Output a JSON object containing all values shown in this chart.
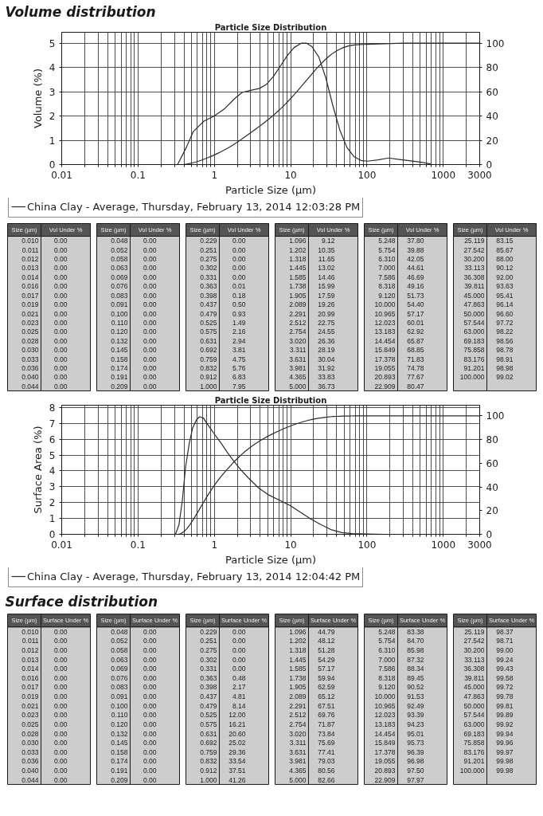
{
  "chart_data": [
    {
      "type": "line",
      "title": "Volume distribution",
      "subtitle": "Particle Size Distribution",
      "xlabel": "Particle Size (µm)",
      "ylabel": "Volume (%)",
      "log": "x",
      "xlim": [
        0.01,
        3000
      ],
      "xticks": [
        0.01,
        {
          "value": 0.02,
          "label": null
        },
        {
          "value": 0.03,
          "label": null
        },
        {
          "value": 0.04,
          "label": null
        },
        {
          "value": 0.05,
          "label": null
        },
        {
          "value": 0.06,
          "label": null
        },
        {
          "value": 0.07,
          "label": null
        },
        {
          "value": 0.08,
          "label": null
        },
        {
          "value": 0.09,
          "label": null
        },
        0.1,
        {
          "value": 0.2,
          "label": null
        },
        {
          "value": 0.3,
          "label": null
        },
        {
          "value": 0.4,
          "label": null
        },
        {
          "value": 0.5,
          "label": null
        },
        {
          "value": 0.6,
          "label": null
        },
        {
          "value": 0.7,
          "label": null
        },
        {
          "value": 0.8,
          "label": null
        },
        {
          "value": 0.9,
          "label": null
        },
        1,
        {
          "value": 2,
          "label": null
        },
        {
          "value": 3,
          "label": null
        },
        {
          "value": 4,
          "label": null
        },
        {
          "value": 5,
          "label": null
        },
        {
          "value": 6,
          "label": null
        },
        {
          "value": 7,
          "label": null
        },
        {
          "value": 8,
          "label": null
        },
        {
          "value": 9,
          "label": null
        },
        10,
        {
          "value": 20,
          "label": null
        },
        {
          "value": 30,
          "label": null
        },
        {
          "value": 40,
          "label": null
        },
        {
          "value": 50,
          "label": null
        },
        {
          "value": 60,
          "label": null
        },
        {
          "value": 70,
          "label": null
        },
        {
          "value": 80,
          "label": null
        },
        {
          "value": 90,
          "label": null
        },
        100,
        {
          "value": 200,
          "label": null
        },
        {
          "value": 300,
          "label": null
        },
        {
          "value": 400,
          "label": null
        },
        {
          "value": 500,
          "label": null
        },
        {
          "value": 600,
          "label": null
        },
        {
          "value": 700,
          "label": null
        },
        {
          "value": 800,
          "label": null
        },
        {
          "value": 900,
          "label": null
        },
        1000,
        {
          "value": 2000,
          "label": null
        },
        3000
      ],
      "ylim": [
        0,
        5.45
      ],
      "yticks": [
        0,
        1,
        2,
        3,
        4,
        5
      ],
      "y2lim": [
        0,
        109
      ],
      "y2ticks": [
        0,
        20,
        40,
        60,
        80,
        100
      ],
      "grid": true,
      "legend": "bottom",
      "series": [
        {
          "name": "China Clay - Average, Thursday, February 13, 2014 12:03:28 PM",
          "color": "#2b2b2b",
          "x": [
            0.33,
            0.43,
            0.53,
            0.73,
            1,
            1.37,
            1.88,
            2.32,
            2.86,
            3.92,
            4.84,
            5.98,
            7.38,
            9.1,
            11.2,
            13.8,
            16.2,
            19,
            23.4,
            28.9,
            35.7,
            44,
            54.5,
            67.3,
            83,
            102,
            140,
            192,
            264,
            360,
            496,
            680
          ],
          "values": [
            0,
            0.71,
            1.36,
            1.79,
            2.0,
            2.31,
            2.74,
            2.97,
            3.04,
            3.14,
            3.31,
            3.64,
            4.07,
            4.5,
            4.83,
            5.0,
            5.0,
            4.86,
            4.43,
            3.57,
            2.43,
            1.43,
            0.71,
            0.33,
            0.17,
            0.14,
            0.19,
            0.27,
            0.21,
            0.16,
            0.1,
            0.03
          ]
        },
        {
          "axis": "y2",
          "color": "#2b2b2b",
          "x": [
            0.01,
            0.331,
            0.363,
            0.398,
            0.437,
            0.479,
            0.525,
            0.575,
            0.631,
            0.692,
            0.759,
            0.832,
            0.912,
            1.0,
            1.096,
            1.202,
            1.318,
            1.445,
            1.585,
            1.738,
            1.905,
            2.089,
            2.291,
            2.512,
            2.754,
            3.02,
            3.311,
            3.631,
            3.981,
            4.365,
            5.0,
            5.248,
            5.754,
            6.31,
            7.0,
            7.586,
            8.318,
            9.12,
            10.0,
            10.965,
            12.023,
            13.183,
            14.454,
            15.849,
            17.378,
            19.055,
            20.893,
            22.909,
            25.119,
            27.542,
            30.2,
            33.113,
            36.308,
            39.811,
            45.0,
            47.863,
            50.0,
            57.544,
            63.0,
            69.183,
            75.858,
            83.176,
            91.201,
            100.0,
            300,
            3000
          ],
          "values": [
            0,
            0,
            0.01,
            0.18,
            0.5,
            0.93,
            1.49,
            2.16,
            2.94,
            3.81,
            4.75,
            5.76,
            6.83,
            7.95,
            9.12,
            10.35,
            11.65,
            13.02,
            14.46,
            15.99,
            17.59,
            19.26,
            20.99,
            22.75,
            24.55,
            26.36,
            28.19,
            30.04,
            31.92,
            33.83,
            36.73,
            37.8,
            39.88,
            42.05,
            44.61,
            46.69,
            49.16,
            51.73,
            54.4,
            57.17,
            60.01,
            62.92,
            65.87,
            68.85,
            71.83,
            74.78,
            77.67,
            80.47,
            83.15,
            85.67,
            88.0,
            90.12,
            92.0,
            93.63,
            95.41,
            96.14,
            96.6,
            97.72,
            98.22,
            98.56,
            98.78,
            98.91,
            98.98,
            99.02,
            100,
            100
          ]
        }
      ]
    },
    {
      "type": "other",
      "xlabel": "Size (µm)",
      "ylabel": "Vol Under %",
      "categories": [
        "0.010",
        "0.011",
        "0.012",
        "0.013",
        "0.014",
        "0.016",
        "0.017",
        "0.019",
        "0.021",
        "0.023",
        "0.025",
        "0.028",
        "0.030",
        "0.033",
        "0.036",
        "0.040",
        "0.044",
        "0.048",
        "0.052",
        "0.058",
        "0.063",
        "0.069",
        "0.076",
        "0.083",
        "0.091",
        "0.100",
        "0.110",
        "0.120",
        "0.132",
        "0.145",
        "0.158",
        "0.174",
        "0.191",
        "0.209",
        "0.229",
        "0.251",
        "0.275",
        "0.302",
        "0.331",
        "0.363",
        "0.398",
        "0.437",
        "0.479",
        "0.525",
        "0.575",
        "0.631",
        "0.692",
        "0.759",
        "0.832",
        "0.912",
        "1.000",
        "1.096",
        "1.202",
        "1.318",
        "1.445",
        "1.585",
        "1.738",
        "1.905",
        "2.089",
        "2.291",
        "2.512",
        "2.754",
        "3.020",
        "3.311",
        "3.631",
        "3.981",
        "4.365",
        "5.000",
        "5.248",
        "5.754",
        "6.310",
        "7.000",
        "7.586",
        "8.318",
        "9.120",
        "10.000",
        "10.965",
        "12.023",
        "13.183",
        "14.454",
        "15.849",
        "17.378",
        "19.055",
        "20.893",
        "22.909",
        "25.119",
        "27.542",
        "30.200",
        "33.113",
        "36.308",
        "39.811",
        "45.000",
        "47.863",
        "50.000",
        "57.544",
        "63.000",
        "69.183",
        "75.858",
        "83.176",
        "91.201",
        "100.000"
      ],
      "value_labels": [
        "0.00",
        "0.00",
        "0.00",
        "0.00",
        "0.00",
        "0.00",
        "0.00",
        "0.00",
        "0.00",
        "0.00",
        "0.00",
        "0.00",
        "0.00",
        "0.00",
        "0.00",
        "0.00",
        "0.00",
        "0.00",
        "0.00",
        "0.00",
        "0.00",
        "0.00",
        "0.00",
        "0.00",
        "0.00",
        "0.00",
        "0.00",
        "0.00",
        "0.00",
        "0.00",
        "0.00",
        "0.00",
        "0.00",
        "0.00",
        "0.00",
        "0.00",
        "0.00",
        "0.00",
        "0.00",
        "0.01",
        "0.18",
        "0.50",
        "0.93",
        "1.49",
        "2.16",
        "2.94",
        "3.81",
        "4.75",
        "5.76",
        "6.83",
        "7.95",
        "9.12",
        "10.35",
        "11.65",
        "13.02",
        "14.46",
        "15.99",
        "17.59",
        "19.26",
        "20.99",
        "22.75",
        "24.55",
        "26.36",
        "28.19",
        "30.04",
        "31.92",
        "33.83",
        "36.73",
        "37.80",
        "39.88",
        "42.05",
        "44.61",
        "46.69",
        "49.16",
        "51.73",
        "54.40",
        "57.17",
        "60.01",
        "62.92",
        "65.87",
        "68.85",
        "71.83",
        "74.78",
        "77.67",
        "80.47",
        "83.15",
        "85.67",
        "88.00",
        "90.12",
        "92.00",
        "93.63",
        "95.41",
        "96.14",
        "96.60",
        "97.72",
        "98.22",
        "98.56",
        "98.78",
        "98.91",
        "98.98",
        "99.02"
      ]
    },
    {
      "type": "line",
      "subtitle": "Particle Size Distribution",
      "xlabel": "Particle Size (µm)",
      "ylabel": "Surface Area (%)",
      "log": "x",
      "xlim": [
        0.01,
        3000
      ],
      "xticks": [
        0.01,
        {
          "value": 0.02,
          "label": null
        },
        {
          "value": 0.03,
          "label": null
        },
        {
          "value": 0.04,
          "label": null
        },
        {
          "value": 0.05,
          "label": null
        },
        {
          "value": 0.06,
          "label": null
        },
        {
          "value": 0.07,
          "label": null
        },
        {
          "value": 0.08,
          "label": null
        },
        {
          "value": 0.09,
          "label": null
        },
        0.1,
        {
          "value": 0.2,
          "label": null
        },
        {
          "value": 0.3,
          "label": null
        },
        {
          "value": 0.4,
          "label": null
        },
        {
          "value": 0.5,
          "label": null
        },
        {
          "value": 0.6,
          "label": null
        },
        {
          "value": 0.7,
          "label": null
        },
        {
          "value": 0.8,
          "label": null
        },
        {
          "value": 0.9,
          "label": null
        },
        1,
        {
          "value": 2,
          "label": null
        },
        {
          "value": 3,
          "label": null
        },
        {
          "value": 4,
          "label": null
        },
        {
          "value": 5,
          "label": null
        },
        {
          "value": 6,
          "label": null
        },
        {
          "value": 7,
          "label": null
        },
        {
          "value": 8,
          "label": null
        },
        {
          "value": 9,
          "label": null
        },
        10,
        {
          "value": 20,
          "label": null
        },
        {
          "value": 30,
          "label": null
        },
        {
          "value": 40,
          "label": null
        },
        {
          "value": 50,
          "label": null
        },
        {
          "value": 60,
          "label": null
        },
        {
          "value": 70,
          "label": null
        },
        {
          "value": 80,
          "label": null
        },
        {
          "value": 90,
          "label": null
        },
        100,
        {
          "value": 200,
          "label": null
        },
        {
          "value": 300,
          "label": null
        },
        {
          "value": 400,
          "label": null
        },
        {
          "value": 500,
          "label": null
        },
        {
          "value": 600,
          "label": null
        },
        {
          "value": 700,
          "label": null
        },
        {
          "value": 800,
          "label": null
        },
        {
          "value": 900,
          "label": null
        },
        1000,
        {
          "value": 2000,
          "label": null
        },
        3000
      ],
      "ylim": [
        0,
        8.15
      ],
      "yticks": [
        0,
        1,
        2,
        3,
        4,
        5,
        6,
        7,
        8
      ],
      "y2lim": [
        0,
        109
      ],
      "y2ticks": [
        0,
        20,
        40,
        60,
        80,
        100
      ],
      "grid": true,
      "legend": "bottom",
      "series": [
        {
          "name": "China Clay - Average, Thursday, February 13, 2014 12:04:42 PM",
          "color": "#2b2b2b",
          "x": [
            0.31,
            0.344,
            0.38,
            0.42,
            0.47,
            0.52,
            0.58,
            0.64,
            0.72,
            0.79,
            0.98,
            1.21,
            1.49,
            1.83,
            2.26,
            2.79,
            3.82,
            5.22,
            7.15,
            9.79,
            13.4,
            18.3,
            25.1,
            34.4,
            47,
            64.5,
            98,
            166
          ],
          "values": [
            0,
            0.6,
            2.1,
            4.25,
            5.75,
            6.72,
            7.21,
            7.42,
            7.34,
            7.04,
            6.39,
            5.79,
            5.15,
            4.57,
            4.03,
            3.56,
            2.92,
            2.47,
            2.15,
            1.82,
            1.39,
            0.97,
            0.6,
            0.28,
            0.11,
            0.04,
            0.02,
            0
          ]
        },
        {
          "axis": "y2",
          "color": "#2b2b2b",
          "x": [
            0.01,
            0.331,
            0.363,
            0.398,
            0.437,
            0.479,
            0.525,
            0.575,
            0.631,
            0.692,
            0.759,
            0.832,
            0.912,
            1.0,
            1.096,
            1.202,
            1.318,
            1.445,
            1.585,
            1.738,
            1.905,
            2.089,
            2.291,
            2.512,
            2.754,
            3.02,
            3.311,
            3.631,
            3.981,
            4.365,
            5.0,
            5.248,
            5.754,
            6.31,
            7.0,
            7.586,
            8.318,
            9.12,
            10.0,
            10.965,
            12.023,
            13.183,
            14.454,
            15.849,
            17.378,
            19.055,
            20.893,
            22.909,
            25.119,
            27.542,
            30.2,
            33.113,
            36.308,
            39.811,
            45.0,
            47.863,
            50.0,
            57.544,
            63.0,
            69.183,
            75.858,
            83.176,
            91.201,
            100.0,
            3000
          ],
          "values": [
            0,
            0,
            0.48,
            2.17,
            4.81,
            8.14,
            12.0,
            16.21,
            20.6,
            25.02,
            29.36,
            33.54,
            37.51,
            41.26,
            44.79,
            48.12,
            51.28,
            54.29,
            57.17,
            59.94,
            62.59,
            65.12,
            67.51,
            69.76,
            71.87,
            73.84,
            75.69,
            77.41,
            79.03,
            80.56,
            82.66,
            83.38,
            84.7,
            85.98,
            87.32,
            88.34,
            89.45,
            90.52,
            91.53,
            92.49,
            93.39,
            94.23,
            95.01,
            95.73,
            96.39,
            96.98,
            97.5,
            97.97,
            98.37,
            98.71,
            99.0,
            99.24,
            99.43,
            99.58,
            99.72,
            99.78,
            99.81,
            99.89,
            99.92,
            99.94,
            99.96,
            99.97,
            99.98,
            99.98,
            100
          ]
        }
      ]
    },
    {
      "type": "other",
      "title": "Surface distribution",
      "xlabel": "Size (µm)",
      "ylabel": "Surface Under %",
      "categories": [
        "0.010",
        "0.011",
        "0.012",
        "0.013",
        "0.014",
        "0.016",
        "0.017",
        "0.019",
        "0.021",
        "0.023",
        "0.025",
        "0.028",
        "0.030",
        "0.033",
        "0.036",
        "0.040",
        "0.044",
        "0.048",
        "0.052",
        "0.058",
        "0.063",
        "0.069",
        "0.076",
        "0.083",
        "0.091",
        "0.100",
        "0.110",
        "0.120",
        "0.132",
        "0.145",
        "0.158",
        "0.174",
        "0.191",
        "0.209",
        "0.229",
        "0.251",
        "0.275",
        "0.302",
        "0.331",
        "0.363",
        "0.398",
        "0.437",
        "0.479",
        "0.525",
        "0.575",
        "0.631",
        "0.692",
        "0.759",
        "0.832",
        "0.912",
        "1.000",
        "1.096",
        "1.202",
        "1.318",
        "1.445",
        "1.585",
        "1.738",
        "1.905",
        "2.089",
        "2.291",
        "2.512",
        "2.754",
        "3.020",
        "3.311",
        "3.631",
        "3.981",
        "4.365",
        "5.000",
        "5.248",
        "5.754",
        "6.310",
        "7.000",
        "7.586",
        "8.318",
        "9.120",
        "10.000",
        "10.965",
        "12.023",
        "13.183",
        "14.454",
        "15.849",
        "17.378",
        "19.055",
        "20.893",
        "22.909",
        "25.119",
        "27.542",
        "30.200",
        "33.113",
        "36.308",
        "39.811",
        "45.000",
        "47.863",
        "50.000",
        "57.544",
        "63.000",
        "69.183",
        "75.858",
        "83.176",
        "91.201",
        "100.000"
      ],
      "value_labels": [
        "0.00",
        "0.00",
        "0.00",
        "0.00",
        "0.00",
        "0.00",
        "0.00",
        "0.00",
        "0.00",
        "0.00",
        "0.00",
        "0.00",
        "0.00",
        "0.00",
        "0.00",
        "0.00",
        "0.00",
        "0.00",
        "0.00",
        "0.00",
        "0.00",
        "0.00",
        "0.00",
        "0.00",
        "0.00",
        "0.00",
        "0.00",
        "0.00",
        "0.00",
        "0.00",
        "0.00",
        "0.00",
        "0.00",
        "0.00",
        "0.00",
        "0.00",
        "0.00",
        "0.00",
        "0.00",
        "0.48",
        "2.17",
        "4.81",
        "8.14",
        "12.00",
        "16.21",
        "20.60",
        "25.02",
        "29.36",
        "33.54",
        "37.51",
        "41.26",
        "44.79",
        "48.12",
        "51.28",
        "54.29",
        "57.17",
        "59.94",
        "62.59",
        "65.12",
        "67.51",
        "69.76",
        "71.87",
        "73.84",
        "75.69",
        "77.41",
        "79.03",
        "80.56",
        "82.66",
        "83.38",
        "84.70",
        "85.98",
        "87.32",
        "88.34",
        "89.45",
        "90.52",
        "91.53",
        "92.49",
        "93.39",
        "94.23",
        "95.01",
        "95.73",
        "96.39",
        "96.98",
        "97.50",
        "97.97",
        "98.37",
        "98.71",
        "99.00",
        "99.24",
        "99.43",
        "99.58",
        "99.72",
        "99.78",
        "99.81",
        "99.89",
        "99.92",
        "99.94",
        "99.96",
        "99.97",
        "99.98",
        "99.98"
      ]
    }
  ]
}
